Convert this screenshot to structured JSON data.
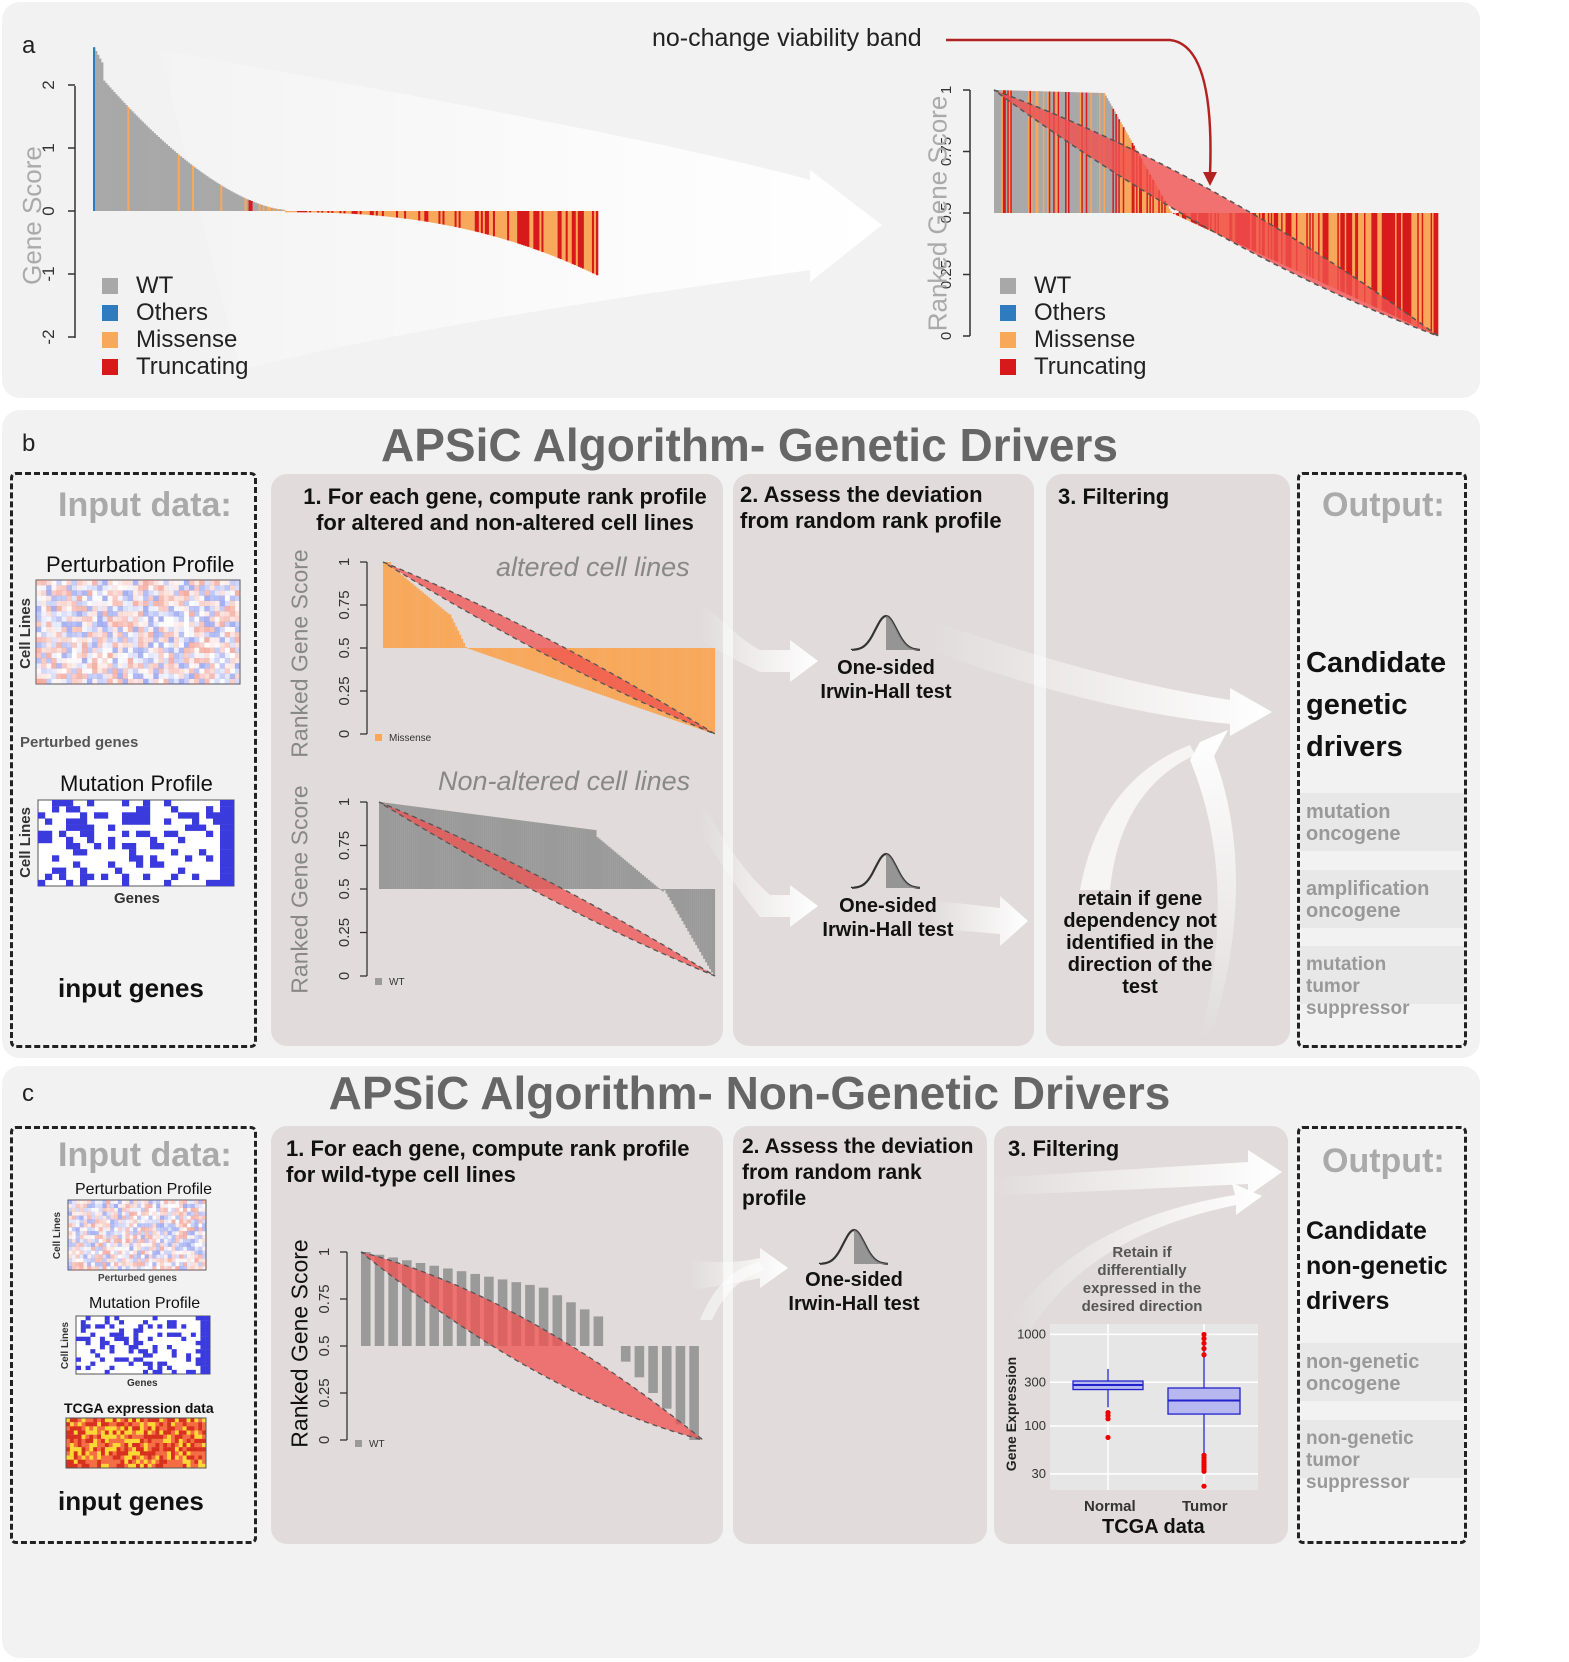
{
  "panel_a": {
    "label": "a",
    "annotation": "no-change viability band",
    "left_ylabel": "Gene Score",
    "right_ylabel": "Ranked Gene Score",
    "left_yticks": [
      "2",
      "1",
      "0",
      "-1",
      "-2"
    ],
    "right_yticks": [
      "1",
      "0.75",
      "0.5",
      "0.25",
      "0"
    ],
    "legend": [
      {
        "name": "WT",
        "color": "#a8a8a8"
      },
      {
        "name": "Others",
        "color": "#2f7bbf"
      },
      {
        "name": "Missense",
        "color": "#f8a85a"
      },
      {
        "name": "Truncating",
        "color": "#d7191c"
      }
    ]
  },
  "panel_b": {
    "label": "b",
    "title": "APSiC Algorithm- Genetic Drivers",
    "input_title": "Input data:",
    "perturbation_profile": "Perturbation Profile",
    "mutation_profile": "Mutation Profile",
    "cell_lines": "Cell Lines",
    "perturbed_genes": "Perturbed genes",
    "genes": "Genes",
    "input_genes": "input genes",
    "step1_title": "1. For each gene, compute rank profile for altered and non-altered cell lines",
    "altered_label": "altered cell lines",
    "nonaltered_label": "Non-altered cell lines",
    "plot_ylabel": "Ranked Gene Score",
    "yticks": [
      "1",
      "0.75",
      "0.5",
      "0.25",
      "0"
    ],
    "legend_missense": "Missense",
    "legend_wt": "WT",
    "step2_title": "2. Assess the deviation from random rank profile",
    "test_label_1": "One-sided",
    "test_label_2": "Irwin-Hall test",
    "step3_title": "3. Filtering",
    "filter_text": "retain if gene dependency not identified in the direction of the test",
    "output_title": "Output:",
    "candidate_line1": "Candidate",
    "candidate_line2": "genetic",
    "candidate_line3": "drivers",
    "outputs": [
      {
        "l1": "mutation",
        "l2": "oncogene"
      },
      {
        "l1": "amplification",
        "l2": "oncogene"
      },
      {
        "l1": "mutation",
        "l2": "tumor suppressor"
      }
    ]
  },
  "panel_c": {
    "label": "c",
    "title": "APSiC Algorithm- Non-Genetic Drivers",
    "input_title": "Input data:",
    "perturbation_profile": "Perturbation Profile",
    "mutation_profile": "Mutation Profile",
    "cell_lines": "Cell Lines",
    "perturbed_genes": "Perturbed genes",
    "genes": "Genes",
    "tcga_expr": "TCGA expression data",
    "input_genes": "input genes",
    "step1_title": "1. For each gene, compute rank profile for wild-type cell lines",
    "plot_ylabel": "Ranked Gene Score",
    "yticks": [
      "1",
      "0.75",
      "0.5",
      "0.25",
      "0"
    ],
    "legend_wt": "WT",
    "step2_title": "2. Assess the deviation from random rank profile",
    "test_label_1": "One-sided",
    "test_label_2": "Irwin-Hall test",
    "step3_title": "3. Filtering",
    "retain_text": "Retain if differentially expressed in the desired direction",
    "box_ylabel": "Gene Expression",
    "box_yticks": [
      "1000",
      "300",
      "100",
      "30"
    ],
    "box_categories": [
      "Normal",
      "Tumor"
    ],
    "box_xlabel": "TCGA data",
    "output_title": "Output:",
    "candidate_line1": "Candidate",
    "candidate_line2": "non-genetic",
    "candidate_line3": "drivers",
    "outputs": [
      {
        "l1": "non-genetic",
        "l2": "oncogene"
      },
      {
        "l1": "non-genetic",
        "l2": "tumor suppressor"
      }
    ]
  }
}
